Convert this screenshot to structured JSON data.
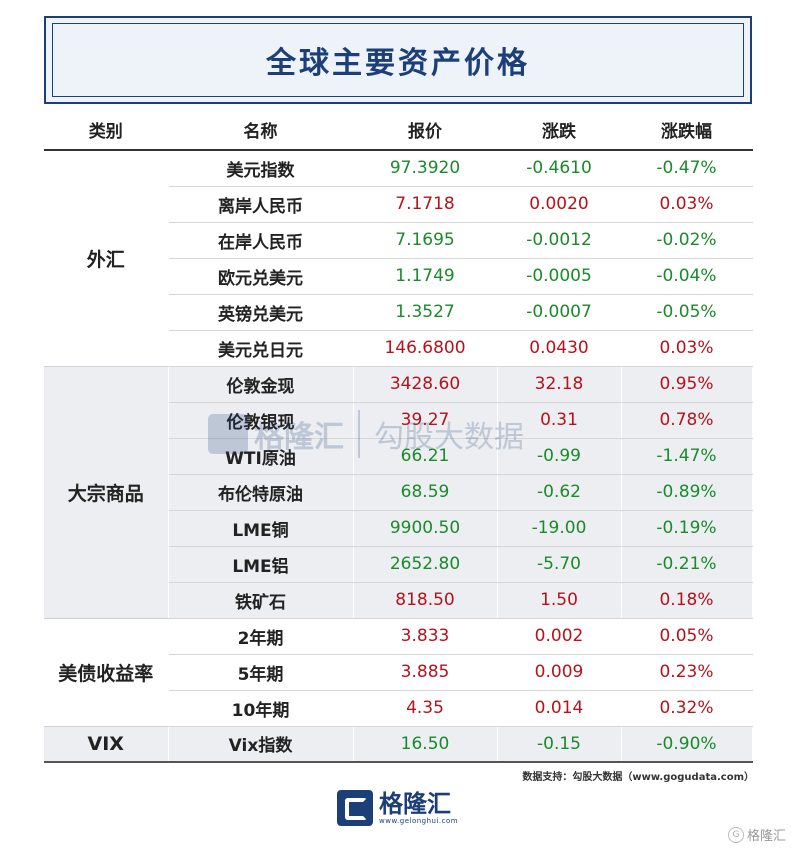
{
  "title": "全球主要资产价格",
  "headers": [
    "类别",
    "名称",
    "报价",
    "涨跌",
    "涨跌幅"
  ],
  "groups": [
    {
      "category": "外汇",
      "rows": [
        {
          "name": "美元指数",
          "price": "97.3920",
          "change": "-0.4610",
          "pct": "-0.47%",
          "dir": "down"
        },
        {
          "name": "离岸人民币",
          "price": "7.1718",
          "change": "0.0020",
          "pct": "0.03%",
          "dir": "up"
        },
        {
          "name": "在岸人民币",
          "price": "7.1695",
          "change": "-0.0012",
          "pct": "-0.02%",
          "dir": "down"
        },
        {
          "name": "欧元兑美元",
          "price": "1.1749",
          "change": "-0.0005",
          "pct": "-0.04%",
          "dir": "down"
        },
        {
          "name": "英镑兑美元",
          "price": "1.3527",
          "change": "-0.0007",
          "pct": "-0.05%",
          "dir": "down"
        },
        {
          "name": "美元兑日元",
          "price": "146.6800",
          "change": "0.0430",
          "pct": "0.03%",
          "dir": "up"
        }
      ]
    },
    {
      "category": "大宗商品",
      "rows": [
        {
          "name": "伦敦金现",
          "price": "3428.60",
          "change": "32.18",
          "pct": "0.95%",
          "dir": "up"
        },
        {
          "name": "伦敦银现",
          "price": "39.27",
          "change": "0.31",
          "pct": "0.78%",
          "dir": "up"
        },
        {
          "name": "WTI原油",
          "price": "66.21",
          "change": "-0.99",
          "pct": "-1.47%",
          "dir": "down"
        },
        {
          "name": "布伦特原油",
          "price": "68.59",
          "change": "-0.62",
          "pct": "-0.89%",
          "dir": "down"
        },
        {
          "name": "LME铜",
          "price": "9900.50",
          "change": "-19.00",
          "pct": "-0.19%",
          "dir": "down"
        },
        {
          "name": "LME铝",
          "price": "2652.80",
          "change": "-5.70",
          "pct": "-0.21%",
          "dir": "down"
        },
        {
          "name": "铁矿石",
          "price": "818.50",
          "change": "1.50",
          "pct": "0.18%",
          "dir": "up"
        }
      ]
    },
    {
      "category": "美债收益率",
      "rows": [
        {
          "name": "2年期",
          "price": "3.833",
          "change": "0.002",
          "pct": "0.05%",
          "dir": "up"
        },
        {
          "name": "5年期",
          "price": "3.885",
          "change": "0.009",
          "pct": "0.23%",
          "dir": "up"
        },
        {
          "name": "10年期",
          "price": "4.35",
          "change": "0.014",
          "pct": "0.32%",
          "dir": "up"
        }
      ]
    },
    {
      "category": "VIX",
      "rows": [
        {
          "name": "Vix指数",
          "price": "16.50",
          "change": "-0.15",
          "pct": "-0.90%",
          "dir": "down"
        }
      ]
    }
  ],
  "footnote": "数据支持：勾股大数据（www.gogudata.com）",
  "logo": {
    "name": "格隆汇",
    "url": "www.gelonghui.com"
  },
  "watermark": {
    "brand1": "格隆汇",
    "brand2": "勾股大数据"
  },
  "corner_mark": "格隆汇",
  "colors": {
    "up": "#b5121b",
    "down": "#1a8a2a",
    "brand": "#1c3f7a"
  }
}
